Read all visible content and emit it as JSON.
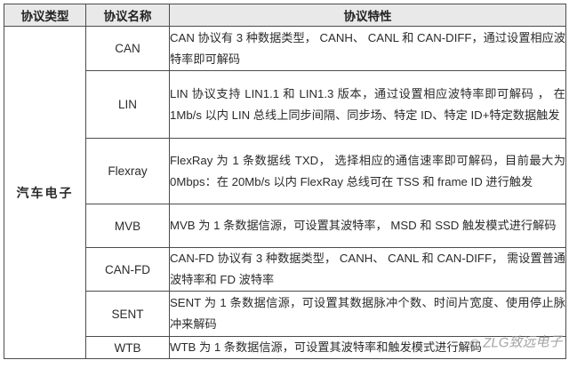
{
  "table": {
    "headers": {
      "type": "协议类型",
      "name": "协议名称",
      "feature": "协议特性"
    },
    "category": "汽车电子",
    "rows": [
      {
        "name": "CAN",
        "feature": "CAN 协议有 3 种数据类型， CANH、 CANL 和 CAN-DIFF，通过设置相应波特率即可解码"
      },
      {
        "name": "LIN",
        "feature": "LIN 协议支持 LIN1.1 和 LIN1.3 版本，通过设置相应波特率即可解码 ， 在 1Mb/s 以内 LIN 总线上同步间隔、同步场、特定 ID、特定 ID+特定数据触发"
      },
      {
        "name": "Flexray",
        "feature": "FlexRay 为 1 条数据线 TXD， 选择相应的通信速率即可解码，目前最大为 0Mbps：在 20Mb/s 以内 FlexRay 总线可在 TSS 和 frame ID 进行触发"
      },
      {
        "name": "MVB",
        "feature": "MVB 为 1 条数据信源，可设置其波特率， MSD 和 SSD 触发模式进行解码"
      },
      {
        "name": "CAN-FD",
        "feature": "CAN-FD 协议有 3 种数据类型， CANH、 CANL 和 CAN-DIFF， 需设置普通波特率和 FD 波特率"
      },
      {
        "name": "SENT",
        "feature": "SENT 为 1 条数据信源，可设置其数据脉冲个数、时间片宽度、使用停止脉冲来解码"
      },
      {
        "name": "WTB",
        "feature": "WTB 为 1 条数据信源，可设置其波特率和触发模式进行解码"
      }
    ]
  },
  "watermark": {
    "logo_glyph": "◎",
    "text": "ZLG致远电子"
  },
  "colors": {
    "header_bg": "#e9e9e9",
    "border": "#4c4c4c",
    "text": "#2b2b2b",
    "watermark": "#9b9b9b"
  }
}
